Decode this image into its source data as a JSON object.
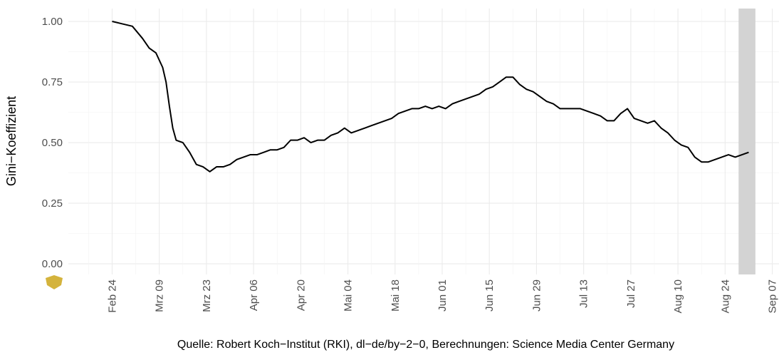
{
  "chart_data": {
    "type": "line",
    "y_label": "Gini−Koeffizient",
    "caption": "Quelle: Robert Koch−Institut (RKI), dl−de/by−2−0, Berechnungen: Science Media Center Germany",
    "x": [
      "02-24",
      "02-27",
      "03-01",
      "03-04",
      "03-06",
      "03-08",
      "03-10",
      "03-11",
      "03-12",
      "03-13",
      "03-14",
      "03-16",
      "03-18",
      "03-20",
      "03-22",
      "03-24",
      "03-26",
      "03-28",
      "03-30",
      "04-01",
      "04-03",
      "04-05",
      "04-07",
      "04-09",
      "04-11",
      "04-13",
      "04-15",
      "04-17",
      "04-19",
      "04-21",
      "04-23",
      "04-25",
      "04-27",
      "04-29",
      "05-01",
      "05-03",
      "05-05",
      "05-07",
      "05-09",
      "05-11",
      "05-13",
      "05-15",
      "05-17",
      "05-19",
      "05-21",
      "05-23",
      "05-25",
      "05-27",
      "05-29",
      "05-31",
      "06-02",
      "06-04",
      "06-06",
      "06-08",
      "06-10",
      "06-12",
      "06-14",
      "06-16",
      "06-18",
      "06-20",
      "06-22",
      "06-24",
      "06-26",
      "06-28",
      "06-30",
      "07-02",
      "07-04",
      "07-06",
      "07-08",
      "07-10",
      "07-12",
      "07-14",
      "07-16",
      "07-18",
      "07-20",
      "07-22",
      "07-24",
      "07-26",
      "07-28",
      "07-30",
      "08-01",
      "08-03",
      "08-05",
      "08-07",
      "08-09",
      "08-11",
      "08-13",
      "08-15",
      "08-17",
      "08-19",
      "08-21",
      "08-23",
      "08-25",
      "08-27",
      "08-29",
      "08-31"
    ],
    "series": [
      {
        "name": "Gini",
        "color": "#000000",
        "values": [
          1.0,
          0.99,
          0.98,
          0.93,
          0.89,
          0.87,
          0.81,
          0.75,
          0.65,
          0.56,
          0.51,
          0.5,
          0.46,
          0.41,
          0.4,
          0.38,
          0.4,
          0.4,
          0.41,
          0.43,
          0.44,
          0.45,
          0.45,
          0.46,
          0.47,
          0.47,
          0.48,
          0.51,
          0.51,
          0.52,
          0.5,
          0.51,
          0.51,
          0.53,
          0.54,
          0.56,
          0.54,
          0.55,
          0.56,
          0.57,
          0.58,
          0.59,
          0.6,
          0.62,
          0.63,
          0.64,
          0.64,
          0.65,
          0.64,
          0.65,
          0.64,
          0.66,
          0.67,
          0.68,
          0.69,
          0.7,
          0.72,
          0.73,
          0.75,
          0.77,
          0.77,
          0.74,
          0.72,
          0.71,
          0.69,
          0.67,
          0.66,
          0.64,
          0.64,
          0.64,
          0.64,
          0.63,
          0.62,
          0.61,
          0.59,
          0.59,
          0.62,
          0.64,
          0.6,
          0.59,
          0.58,
          0.59,
          0.56,
          0.54,
          0.51,
          0.49,
          0.48,
          0.44,
          0.42,
          0.42,
          0.43,
          0.44,
          0.45,
          0.44,
          0.45,
          0.46
        ]
      }
    ],
    "highlight": {
      "range": [
        "08-28",
        "09-02"
      ],
      "color": "#d3d3d3"
    },
    "xlim": [
      "02-11",
      "09-09"
    ],
    "xticks": [
      {
        "value": "02-24",
        "label": "Feb 24"
      },
      {
        "value": "03-09",
        "label": "Mrz 09"
      },
      {
        "value": "03-23",
        "label": "Mrz 23"
      },
      {
        "value": "04-06",
        "label": "Apr 06"
      },
      {
        "value": "04-20",
        "label": "Apr 20"
      },
      {
        "value": "05-04",
        "label": "Mai 04"
      },
      {
        "value": "05-18",
        "label": "Mai 18"
      },
      {
        "value": "06-01",
        "label": "Jun 01"
      },
      {
        "value": "06-15",
        "label": "Jun 15"
      },
      {
        "value": "06-29",
        "label": "Jun 29"
      },
      {
        "value": "07-13",
        "label": "Jul 13"
      },
      {
        "value": "07-27",
        "label": "Jul 27"
      },
      {
        "value": "08-10",
        "label": "Aug 10"
      },
      {
        "value": "08-24",
        "label": "Aug 24"
      },
      {
        "value": "09-07",
        "label": "Sep 07"
      }
    ],
    "ylim": [
      -0.044,
      1.053
    ],
    "yticks": [
      {
        "value": 0,
        "label": "0.00"
      },
      {
        "value": 0.25,
        "label": "0.25"
      },
      {
        "value": 0.5,
        "label": "0.50"
      },
      {
        "value": 0.75,
        "label": "0.75"
      },
      {
        "value": 1,
        "label": "1.00"
      }
    ],
    "grid": true
  }
}
